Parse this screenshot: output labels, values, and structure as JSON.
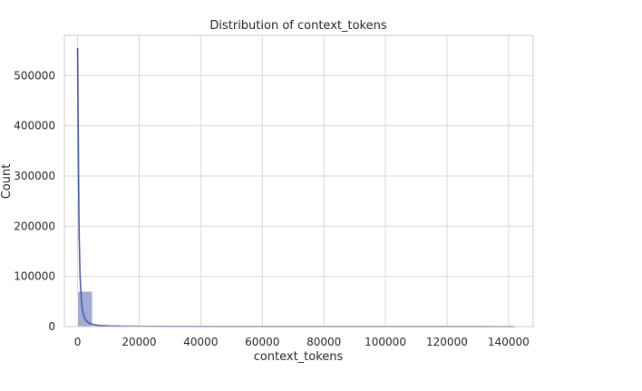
{
  "chart_data": {
    "type": "bar",
    "title": "Distribution of context_tokens",
    "xlabel": "context_tokens",
    "ylabel": "Count",
    "xlim": [
      -4300,
      148000
    ],
    "ylim": [
      0,
      580000
    ],
    "xticks": [
      0,
      20000,
      40000,
      60000,
      80000,
      100000,
      120000,
      140000
    ],
    "yticks": [
      0,
      100000,
      200000,
      300000,
      400000,
      500000
    ],
    "grid": true,
    "bin_width": 4800,
    "bins": [
      {
        "x0": 0,
        "x1": 4800,
        "count": 70000
      },
      {
        "x0": 4800,
        "x1": 9600,
        "count": 1800
      },
      {
        "x0": 9600,
        "x1": 14400,
        "count": 500
      },
      {
        "x0": 14400,
        "x1": 19200,
        "count": 250
      },
      {
        "x0": 19200,
        "x1": 24000,
        "count": 150
      },
      {
        "x0": 24000,
        "x1": 28800,
        "count": 100
      }
    ],
    "kde": {
      "x": [
        0,
        150,
        300,
        500,
        800,
        1200,
        1600,
        2200,
        3000,
        4000,
        5500,
        7500,
        10000,
        15000,
        20000,
        30000,
        50000,
        80000,
        110000,
        142000
      ],
      "y": [
        555000,
        420000,
        300000,
        180000,
        100000,
        55000,
        32000,
        18000,
        10000,
        6000,
        3500,
        2200,
        1500,
        900,
        600,
        350,
        180,
        90,
        40,
        10
      ]
    },
    "colors": {
      "bar_fill": "#a3acd6",
      "bar_stroke": "#ffffff",
      "kde_line": "#4c5ba8",
      "grid": "#d9d9d9",
      "frame": "#cccccc"
    }
  }
}
